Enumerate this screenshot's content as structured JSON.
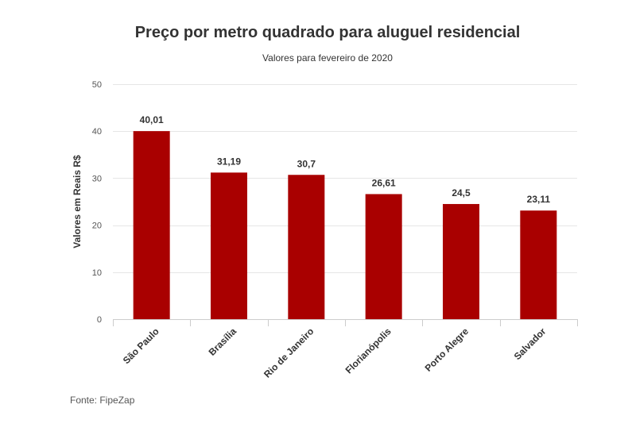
{
  "chart_data": {
    "type": "bar",
    "title": "Preço por metro quadrado para aluguel residencial",
    "subtitle": "Valores para fevereiro de 2020",
    "xlabel": "",
    "ylabel": "Valores em Reais R$",
    "categories": [
      "São Paulo",
      "Brasília",
      "Rio de Janeiro",
      "Florianópolis",
      "Porto Alegre",
      "Salvador"
    ],
    "values": [
      40.01,
      31.19,
      30.7,
      26.61,
      24.5,
      23.11
    ],
    "value_labels": [
      "40,01",
      "31,19",
      "30,7",
      "26,61",
      "24,5",
      "23,11"
    ],
    "ylim": [
      0,
      50
    ],
    "yticks": [
      0,
      10,
      20,
      30,
      40,
      50
    ],
    "grid": true,
    "legend": "none",
    "colors": {
      "bar": "#a90000",
      "grid": "#e6e6e6",
      "axis": "#cccccc"
    },
    "source": "Fonte: FipeZap"
  }
}
